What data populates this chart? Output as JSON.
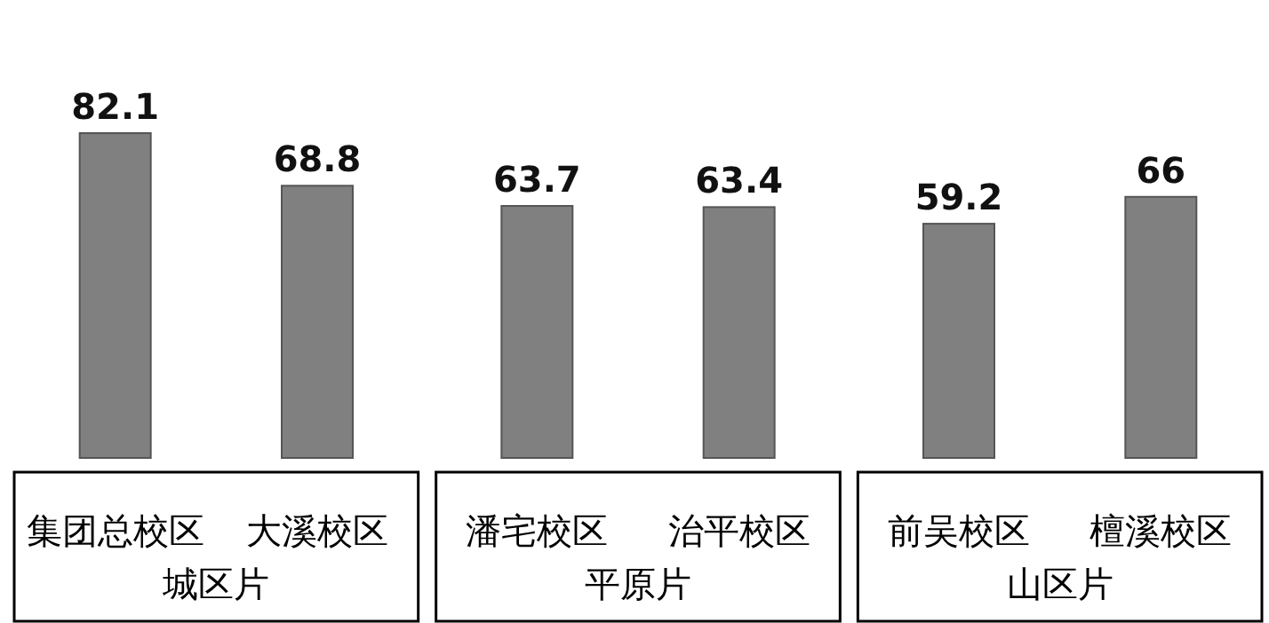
{
  "chart_data": {
    "type": "bar",
    "categories": [
      "集团总校区",
      "大溪校区",
      "潘宅校区",
      "治平校区",
      "前吴校区",
      "檀溪校区"
    ],
    "values": [
      82.1,
      68.8,
      63.7,
      63.4,
      59.2,
      66
    ],
    "color": "#808080",
    "data_labels": true,
    "annotations": [
      "城区片",
      "平原片",
      "山区片"
    ]
  }
}
